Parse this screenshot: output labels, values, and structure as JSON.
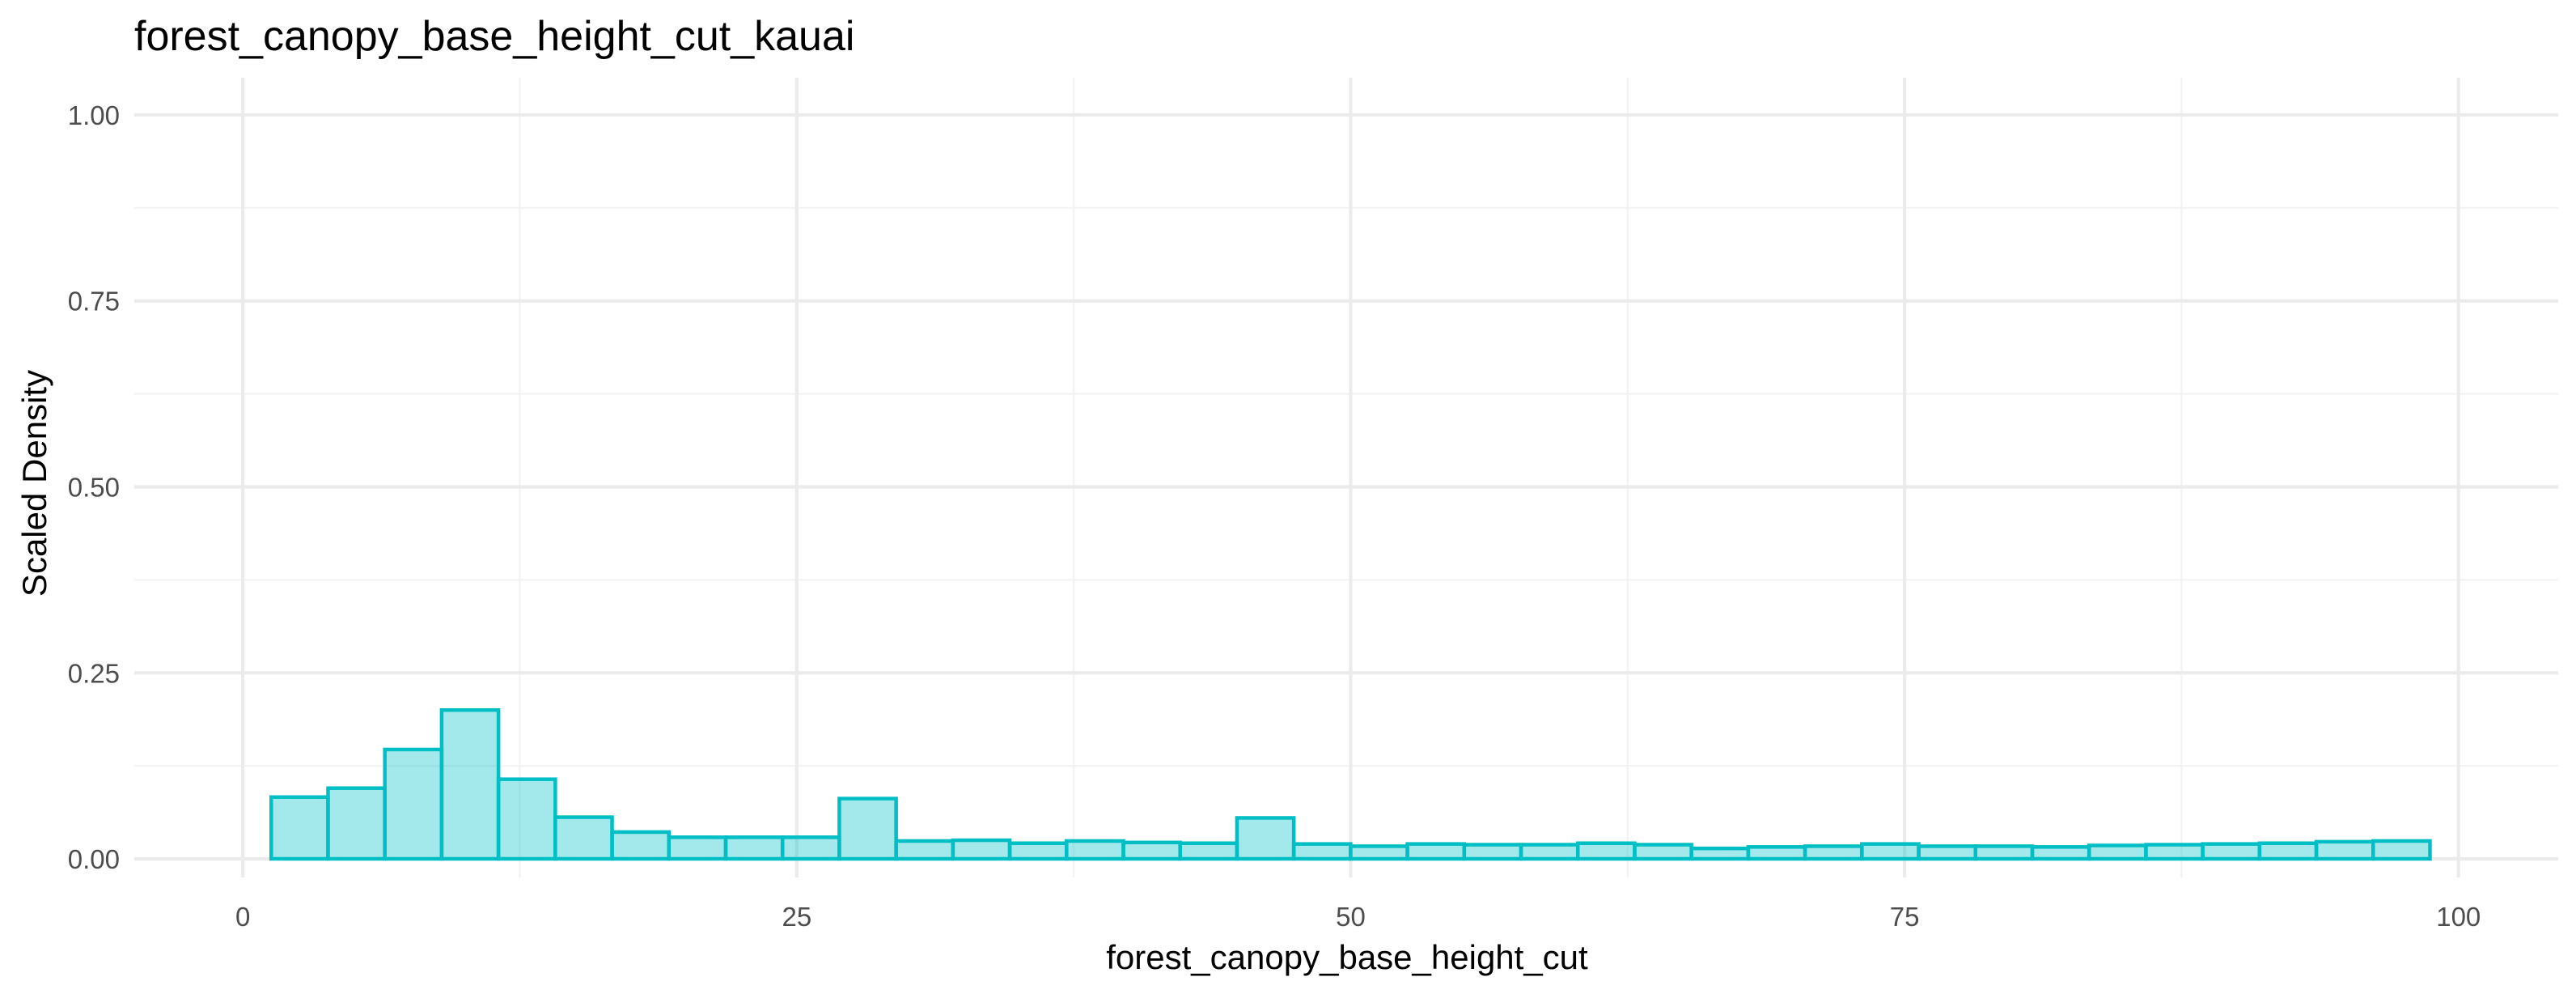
{
  "chart_data": {
    "type": "bar",
    "title": "forest_canopy_base_height_cut_kauai",
    "xlabel": "forest_canopy_base_height_cut",
    "ylabel": "Scaled Density",
    "xlim": [
      -4.9,
      104.5
    ],
    "ylim": [
      -0.025,
      1.05
    ],
    "x_ticks": [
      0,
      25,
      50,
      75,
      100
    ],
    "x_tick_labels": [
      "0",
      "25",
      "50",
      "75",
      "100"
    ],
    "y_ticks": [
      0,
      0.25,
      0.5,
      0.75,
      1
    ],
    "y_tick_labels": [
      "0.00",
      "0.25",
      "0.50",
      "0.75",
      "1.00"
    ],
    "grid": true,
    "legend": "none",
    "fill_color": "#00bfc4",
    "fill_opacity": 0.36,
    "outline_color": "#00bfc4",
    "bin_width": 2.564,
    "bin_start": 1.28,
    "values": [
      0.083,
      0.095,
      0.147,
      0.2,
      0.107,
      0.056,
      0.036,
      0.029,
      0.029,
      0.029,
      0.081,
      0.024,
      0.025,
      0.021,
      0.024,
      0.022,
      0.021,
      0.055,
      0.02,
      0.017,
      0.02,
      0.019,
      0.019,
      0.021,
      0.019,
      0.014,
      0.016,
      0.017,
      0.02,
      0.017,
      0.017,
      0.016,
      0.018,
      0.019,
      0.02,
      0.021,
      0.023,
      0.024
    ]
  }
}
